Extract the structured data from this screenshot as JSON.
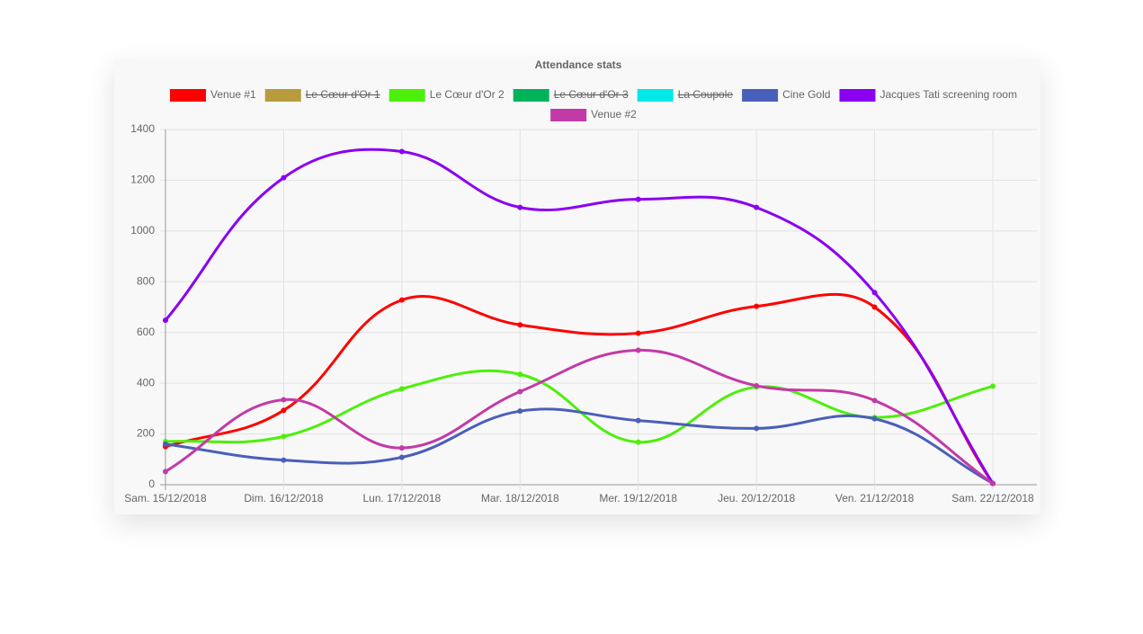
{
  "chart_data": {
    "type": "line",
    "title": "Attendance stats",
    "categories": [
      "Sam. 15/12/2018",
      "Dim. 16/12/2018",
      "Lun. 17/12/2018",
      "Mar. 18/12/2018",
      "Mer. 19/12/2018",
      "Jeu. 20/12/2018",
      "Ven. 21/12/2018",
      "Sam. 22/12/2018"
    ],
    "series": [
      {
        "name": "Venue #1",
        "color": "#ff0000",
        "values": [
          150,
          293,
          728,
          630,
          597,
          703,
          700,
          5
        ]
      },
      {
        "name": "Le Cœur d'Or 1",
        "color": "#b89b3d",
        "hidden": true,
        "values": [
          null,
          null,
          null,
          null,
          null,
          null,
          null,
          null
        ]
      },
      {
        "name": "Le Cœur d'Or 2",
        "color": "#4cf00a",
        "values": [
          170,
          190,
          378,
          435,
          168,
          385,
          265,
          388
        ]
      },
      {
        "name": "Le Cœur d'Or 3",
        "color": "#00b35a",
        "hidden": true,
        "values": [
          null,
          null,
          null,
          null,
          null,
          null,
          null,
          null
        ]
      },
      {
        "name": "La Coupole",
        "color": "#00e8e8",
        "hidden": true,
        "values": [
          null,
          null,
          null,
          null,
          null,
          null,
          null,
          null
        ]
      },
      {
        "name": "Cine Gold",
        "color": "#4a5fba",
        "values": [
          160,
          97,
          108,
          290,
          253,
          222,
          260,
          5
        ]
      },
      {
        "name": "Jacques Tati screening room",
        "color": "#8b00f0",
        "values": [
          648,
          1210,
          1313,
          1093,
          1125,
          1093,
          757,
          5
        ]
      },
      {
        "name": "Venue #2",
        "color": "#c23aa8",
        "values": [
          52,
          335,
          145,
          367,
          530,
          390,
          332,
          5
        ]
      }
    ],
    "ylim": [
      0,
      1400
    ],
    "yticks": [
      0,
      200,
      400,
      600,
      800,
      1000,
      1200,
      1400
    ],
    "grid": true,
    "legend": "top"
  }
}
